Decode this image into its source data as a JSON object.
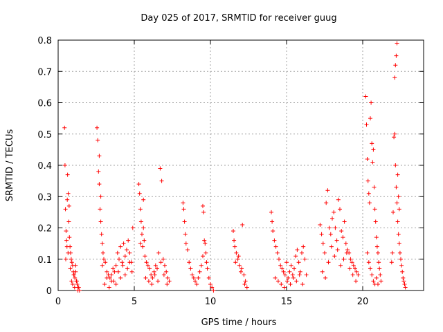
{
  "chart_data": {
    "type": "scatter",
    "title": "Day 025 of 2017, SRMTID for receiver guug",
    "xlabel": "GPS time / hours",
    "ylabel": "SRMTID / TECUs",
    "xlim": [
      0,
      24
    ],
    "ylim": [
      0,
      0.8
    ],
    "xticks": [
      0,
      5,
      10,
      15,
      20
    ],
    "xtick_labels": [
      "0",
      "5",
      "10",
      "15",
      "20"
    ],
    "yticks": [
      0,
      0.1,
      0.2,
      0.3,
      0.4,
      0.5,
      0.6,
      0.7,
      0.8
    ],
    "ytick_labels": [
      "0",
      "0.1",
      "0.2",
      "0.3",
      "0.4",
      "0.5",
      "0.6",
      "0.7",
      "0.8"
    ],
    "grid": true,
    "legend": "none",
    "marker": "+",
    "color": "#ff0000",
    "series": [
      {
        "x": [
          0.42,
          0.45,
          0.48,
          0.52,
          0.55,
          0.58,
          0.62,
          0.66,
          0.7,
          0.74,
          0.78,
          0.82,
          0.86,
          0.9,
          0.95,
          1.0,
          1.05,
          1.1,
          1.15,
          1.2,
          1.25,
          1.3,
          1.35,
          1.4,
          0.5,
          0.6,
          0.65,
          0.72,
          0.8,
          0.88,
          0.95,
          1.02,
          1.08,
          1.15,
          1.22,
          1.3,
          2.55,
          2.6,
          2.65,
          2.7,
          2.75,
          2.8,
          2.85,
          2.9,
          2.95,
          3.0,
          3.1,
          3.2,
          3.3,
          3.4,
          3.5,
          3.6,
          3.7,
          3.8,
          3.9,
          4.0,
          4.1,
          4.2,
          4.3,
          4.4,
          4.5,
          4.6,
          4.7,
          4.8,
          4.9,
          2.7,
          2.8,
          2.9,
          3.05,
          3.2,
          3.35,
          3.5,
          3.65,
          3.8,
          3.95,
          4.1,
          4.25,
          4.4,
          4.55,
          4.7,
          4.85,
          5.3,
          5.35,
          5.4,
          5.45,
          5.5,
          5.55,
          5.6,
          5.65,
          5.7,
          5.8,
          5.9,
          6.0,
          6.1,
          6.2,
          6.3,
          6.4,
          6.5,
          6.6,
          6.7,
          6.8,
          6.9,
          7.0,
          7.1,
          7.2,
          7.3,
          5.4,
          5.6,
          5.75,
          5.95,
          6.15,
          6.35,
          6.55,
          6.75,
          6.95,
          7.15,
          8.2,
          8.25,
          8.3,
          8.35,
          8.4,
          8.5,
          8.6,
          8.7,
          8.8,
          8.9,
          9.0,
          9.1,
          9.2,
          9.3,
          9.4,
          9.5,
          9.6,
          9.7,
          9.8,
          9.9,
          10.0,
          10.1,
          10.2,
          9.5,
          9.55,
          9.65,
          9.75,
          11.5,
          11.55,
          11.6,
          11.7,
          11.8,
          11.9,
          12.0,
          12.1,
          12.2,
          12.3,
          12.4,
          11.65,
          11.85,
          12.05,
          12.25,
          14.0,
          14.05,
          14.1,
          14.2,
          14.3,
          14.4,
          14.5,
          14.6,
          14.7,
          14.8,
          14.9,
          15.0,
          15.1,
          15.2,
          15.3,
          15.4,
          15.5,
          15.6,
          15.7,
          15.8,
          15.9,
          16.0,
          16.1,
          16.2,
          16.3,
          14.25,
          14.45,
          14.65,
          14.85,
          15.05,
          15.25,
          15.45,
          15.65,
          15.85,
          16.05,
          17.2,
          17.3,
          17.4,
          17.5,
          17.6,
          17.7,
          17.8,
          17.9,
          18.0,
          18.1,
          18.2,
          18.3,
          18.4,
          18.5,
          18.6,
          18.7,
          18.8,
          18.9,
          19.0,
          19.1,
          19.2,
          19.3,
          19.4,
          19.5,
          19.6,
          19.7,
          17.35,
          17.55,
          17.75,
          17.95,
          18.15,
          18.35,
          18.55,
          18.75,
          18.95,
          19.15,
          19.35,
          19.55,
          20.2,
          20.25,
          20.3,
          20.35,
          20.4,
          20.45,
          20.5,
          20.55,
          20.6,
          20.65,
          20.7,
          20.75,
          20.8,
          20.85,
          20.9,
          20.95,
          21.0,
          21.05,
          21.1,
          21.15,
          21.2,
          20.3,
          20.4,
          20.5,
          20.6,
          20.7,
          20.8,
          20.9,
          21.0,
          21.9,
          21.95,
          22.0,
          22.05,
          22.1,
          22.15,
          22.2,
          22.25,
          22.3,
          22.35,
          22.4,
          22.45,
          22.5,
          22.55,
          22.6,
          22.65,
          22.7,
          22.75,
          22.8,
          22.1,
          22.15,
          22.2,
          22.25,
          22.3,
          22.35,
          22.4
        ],
        "y": [
          0.52,
          0.4,
          0.26,
          0.19,
          0.16,
          0.14,
          0.37,
          0.31,
          0.22,
          0.17,
          0.14,
          0.12,
          0.1,
          0.09,
          0.08,
          0.06,
          0.05,
          0.04,
          0.06,
          0.03,
          0.02,
          0.01,
          0.01,
          0.0,
          0.1,
          0.29,
          0.12,
          0.27,
          0.07,
          0.03,
          0.02,
          0.05,
          0.01,
          0.08,
          0.03,
          0.0,
          0.52,
          0.48,
          0.38,
          0.34,
          0.26,
          0.22,
          0.18,
          0.15,
          0.12,
          0.1,
          0.09,
          0.06,
          0.05,
          0.04,
          0.03,
          0.07,
          0.06,
          0.08,
          0.12,
          0.1,
          0.14,
          0.09,
          0.15,
          0.11,
          0.13,
          0.16,
          0.12,
          0.09,
          0.2,
          0.43,
          0.3,
          0.08,
          0.02,
          0.04,
          0.01,
          0.05,
          0.03,
          0.02,
          0.06,
          0.04,
          0.08,
          0.05,
          0.07,
          0.09,
          0.06,
          0.34,
          0.31,
          0.26,
          0.22,
          0.18,
          0.14,
          0.29,
          0.16,
          0.11,
          0.09,
          0.08,
          0.07,
          0.05,
          0.04,
          0.06,
          0.08,
          0.07,
          0.12,
          0.39,
          0.35,
          0.1,
          0.08,
          0.06,
          0.04,
          0.03,
          0.15,
          0.2,
          0.04,
          0.03,
          0.02,
          0.05,
          0.03,
          0.09,
          0.05,
          0.02,
          0.28,
          0.26,
          0.22,
          0.18,
          0.15,
          0.13,
          0.09,
          0.07,
          0.05,
          0.04,
          0.03,
          0.02,
          0.04,
          0.06,
          0.08,
          0.11,
          0.16,
          0.12,
          0.07,
          0.04,
          0.02,
          0.01,
          0.0,
          0.27,
          0.25,
          0.15,
          0.09,
          0.19,
          0.16,
          0.14,
          0.12,
          0.1,
          0.08,
          0.06,
          0.21,
          0.05,
          0.03,
          0.01,
          0.09,
          0.11,
          0.07,
          0.02,
          0.25,
          0.22,
          0.19,
          0.16,
          0.14,
          0.12,
          0.1,
          0.08,
          0.07,
          0.06,
          0.05,
          0.09,
          0.04,
          0.06,
          0.08,
          0.05,
          0.07,
          0.11,
          0.13,
          0.09,
          0.06,
          0.12,
          0.14,
          0.1,
          0.05,
          0.04,
          0.03,
          0.02,
          0.01,
          0.03,
          0.02,
          0.04,
          0.03,
          0.05,
          0.02,
          0.21,
          0.18,
          0.15,
          0.12,
          0.28,
          0.32,
          0.2,
          0.18,
          0.23,
          0.25,
          0.2,
          0.16,
          0.29,
          0.26,
          0.19,
          0.17,
          0.22,
          0.15,
          0.13,
          0.12,
          0.1,
          0.09,
          0.08,
          0.07,
          0.06,
          0.05,
          0.06,
          0.04,
          0.09,
          0.14,
          0.11,
          0.13,
          0.08,
          0.1,
          0.12,
          0.07,
          0.05,
          0.03,
          0.62,
          0.53,
          0.42,
          0.35,
          0.31,
          0.28,
          0.55,
          0.6,
          0.47,
          0.41,
          0.45,
          0.33,
          0.26,
          0.22,
          0.17,
          0.14,
          0.12,
          0.09,
          0.07,
          0.05,
          0.03,
          0.12,
          0.09,
          0.07,
          0.05,
          0.03,
          0.02,
          0.04,
          0.02,
          0.09,
          0.12,
          0.25,
          0.49,
          0.5,
          0.4,
          0.33,
          0.28,
          0.22,
          0.18,
          0.15,
          0.12,
          0.1,
          0.08,
          0.06,
          0.04,
          0.03,
          0.02,
          0.01,
          0.68,
          0.72,
          0.75,
          0.79,
          0.37,
          0.3,
          0.26
        ]
      }
    ]
  }
}
